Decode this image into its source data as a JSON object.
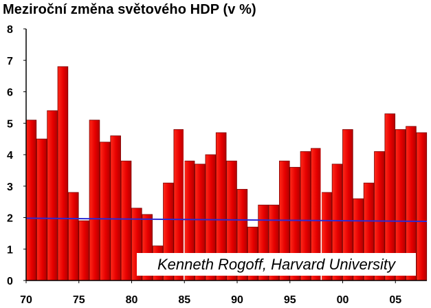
{
  "title": "Meziroční změna světového HDP (v %)",
  "credit": "Kenneth Rogoff, Harvard University",
  "chart_data": {
    "type": "bar",
    "title": "Meziroční změna světového HDP (v %)",
    "xlabel": "",
    "ylabel": "",
    "ylim": [
      0,
      8
    ],
    "y_ticks": [
      "0",
      "1",
      "2",
      "3",
      "4",
      "5",
      "6",
      "7",
      "8"
    ],
    "x_tick_labels": [
      {
        "label": "70",
        "year": 1970
      },
      {
        "label": "75",
        "year": 1975
      },
      {
        "label": "80",
        "year": 1980
      },
      {
        "label": "85",
        "year": 1985
      },
      {
        "label": "90",
        "year": 1990
      },
      {
        "label": "95",
        "year": 1995
      },
      {
        "label": "00",
        "year": 2000
      },
      {
        "label": "05",
        "year": 2005
      }
    ],
    "categories": [
      1970,
      1971,
      1972,
      1973,
      1974,
      1975,
      1976,
      1977,
      1978,
      1979,
      1980,
      1981,
      1982,
      1983,
      1984,
      1985,
      1986,
      1987,
      1988,
      1989,
      1990,
      1991,
      1992,
      1993,
      1994,
      1995,
      1996,
      1997,
      1998,
      1999,
      2000,
      2001,
      2002,
      2003,
      2004,
      2005,
      2006,
      2007
    ],
    "values": [
      5.1,
      4.5,
      5.4,
      6.8,
      2.8,
      1.9,
      5.1,
      4.4,
      4.6,
      3.8,
      2.3,
      2.1,
      1.1,
      3.1,
      4.8,
      3.8,
      3.7,
      4.0,
      4.7,
      3.8,
      2.9,
      1.7,
      2.4,
      2.4,
      3.8,
      3.6,
      4.1,
      4.2,
      2.8,
      3.7,
      4.8,
      2.6,
      3.1,
      4.1,
      5.3,
      4.8,
      4.9,
      4.7
    ],
    "reference_line": {
      "start": 1.98,
      "end": 1.88
    },
    "grid": false,
    "colors": {
      "bar": "#e60000",
      "bar_edge": "#7a0000",
      "line": "#2b2bd6",
      "axis": "#000000"
    }
  }
}
